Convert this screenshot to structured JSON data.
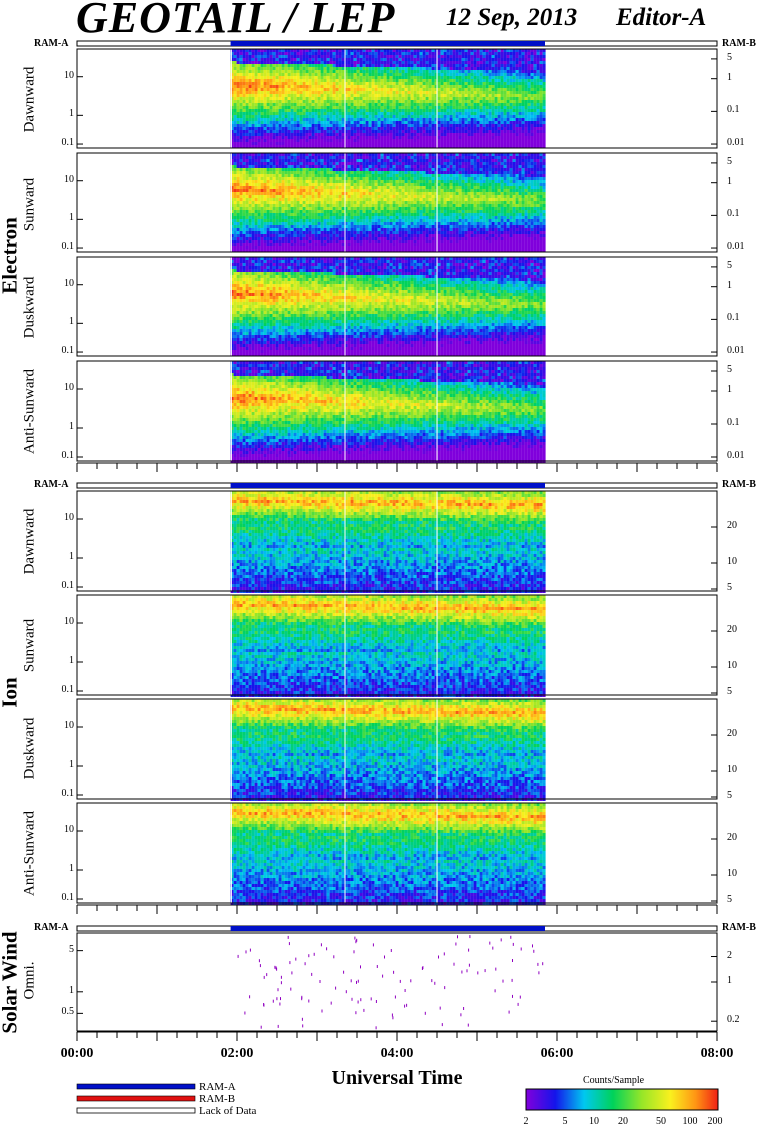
{
  "header": {
    "title": "GEOTAIL / LEP",
    "date": "12 Sep, 2013",
    "editor": "Editor-A"
  },
  "ram_labels": {
    "left": "RAM-A",
    "right": "RAM-B"
  },
  "groups": {
    "electron": "Electron",
    "ion": "Ion",
    "solar_wind": "Solar Wind"
  },
  "x_axis": {
    "title": "Universal Time",
    "ticks": [
      "00:00",
      "02:00",
      "04:00",
      "06:00",
      "08:00"
    ]
  },
  "legend": {
    "ram_a": "RAM-A",
    "ram_b": "RAM-B",
    "lack": "Lack of Data"
  },
  "colorbar": {
    "title": "Counts/Sample",
    "ticks": [
      "2",
      "5",
      "10",
      "20",
      "50",
      "100",
      "200"
    ]
  },
  "colors": {
    "ram_a": "#0010c8",
    "ram_b": "#e01010",
    "solar_dots": "#9000c0"
  },
  "chart_data": [
    {
      "type": "heatmap",
      "group": "Electron",
      "ylabel": "Dawnward",
      "yticks": [
        "10",
        "1",
        "0.1"
      ],
      "y2ticks": [
        "5",
        "1",
        "0.1",
        "0.01"
      ],
      "species": "electron",
      "x_range_hours": [
        0,
        8
      ],
      "data_range_hours": [
        1.92,
        5.85
      ]
    },
    {
      "type": "heatmap",
      "group": "Electron",
      "ylabel": "Sunward",
      "yticks": [
        "10",
        "1",
        "0.1"
      ],
      "y2ticks": [
        "5",
        "1",
        "0.1",
        "0.01"
      ],
      "species": "electron",
      "x_range_hours": [
        0,
        8
      ],
      "data_range_hours": [
        1.92,
        5.85
      ]
    },
    {
      "type": "heatmap",
      "group": "Electron",
      "ylabel": "Duskward",
      "yticks": [
        "10",
        "1",
        "0.1"
      ],
      "y2ticks": [
        "5",
        "1",
        "0.1",
        "0.01"
      ],
      "species": "electron",
      "x_range_hours": [
        0,
        8
      ],
      "data_range_hours": [
        1.92,
        5.85
      ]
    },
    {
      "type": "heatmap",
      "group": "Electron",
      "ylabel": "Anti-Sunward",
      "yticks": [
        "10",
        "1",
        "0.1"
      ],
      "y2ticks": [
        "5",
        "1",
        "0.1",
        "0.01"
      ],
      "species": "electron",
      "x_range_hours": [
        0,
        8
      ],
      "data_range_hours": [
        1.92,
        5.85
      ]
    },
    {
      "type": "heatmap",
      "group": "Ion",
      "ylabel": "Dawnward",
      "yticks": [
        "10",
        "1",
        "0.1"
      ],
      "y2ticks": [
        "20",
        "10",
        "5"
      ],
      "species": "ion",
      "x_range_hours": [
        0,
        8
      ],
      "data_range_hours": [
        1.92,
        5.85
      ]
    },
    {
      "type": "heatmap",
      "group": "Ion",
      "ylabel": "Sunward",
      "yticks": [
        "10",
        "1",
        "0.1"
      ],
      "y2ticks": [
        "20",
        "10",
        "5"
      ],
      "species": "ion",
      "x_range_hours": [
        0,
        8
      ],
      "data_range_hours": [
        1.92,
        5.85
      ]
    },
    {
      "type": "heatmap",
      "group": "Ion",
      "ylabel": "Duskward",
      "yticks": [
        "10",
        "1",
        "0.1"
      ],
      "y2ticks": [
        "20",
        "10",
        "5"
      ],
      "species": "ion",
      "x_range_hours": [
        0,
        8
      ],
      "data_range_hours": [
        1.92,
        5.85
      ]
    },
    {
      "type": "heatmap",
      "group": "Ion",
      "ylabel": "Anti-Sunward",
      "yticks": [
        "10",
        "1",
        "0.1"
      ],
      "y2ticks": [
        "20",
        "10",
        "5"
      ],
      "species": "ion",
      "x_range_hours": [
        0,
        8
      ],
      "data_range_hours": [
        1.92,
        5.85
      ]
    },
    {
      "type": "scatter",
      "group": "Solar Wind",
      "ylabel": "Omni.",
      "yticks": [
        "5",
        "1",
        "0.5"
      ],
      "y2ticks": [
        "2",
        "1",
        "0.2"
      ],
      "x_range_hours": [
        0,
        8
      ],
      "data_range_hours": [
        1.92,
        5.85
      ]
    }
  ]
}
